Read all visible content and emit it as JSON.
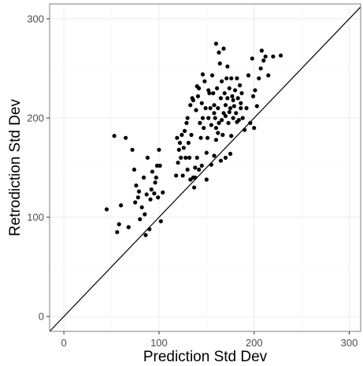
{
  "chart_data": {
    "type": "scatter",
    "xlabel": "Prediction Std Dev",
    "ylabel": "Retrodiction Std Dev",
    "xlim": [
      -15,
      312
    ],
    "ylim": [
      -15,
      315
    ],
    "x_ticks": [
      0,
      100,
      200,
      300
    ],
    "y_ticks": [
      0,
      100,
      200,
      300
    ],
    "grid": true,
    "reference_line": "y = x",
    "colors": {
      "point": "#000000",
      "grid": "#ebebeb",
      "panel_border": "#7f7f7f",
      "line": "#000000"
    },
    "points": [
      [
        45,
        108
      ],
      [
        53,
        182
      ],
      [
        56,
        85
      ],
      [
        58,
        93
      ],
      [
        60,
        112
      ],
      [
        65,
        180
      ],
      [
        68,
        90
      ],
      [
        72,
        168
      ],
      [
        74,
        148
      ],
      [
        75,
        115
      ],
      [
        76,
        132
      ],
      [
        78,
        120
      ],
      [
        79,
        126
      ],
      [
        80,
        98
      ],
      [
        82,
        110
      ],
      [
        84,
        140
      ],
      [
        85,
        103
      ],
      [
        86,
        82
      ],
      [
        87,
        123
      ],
      [
        88,
        160
      ],
      [
        90,
        88
      ],
      [
        91,
        118
      ],
      [
        92,
        128
      ],
      [
        93,
        146
      ],
      [
        95,
        124
      ],
      [
        96,
        135
      ],
      [
        97,
        140
      ],
      [
        98,
        152
      ],
      [
        99,
        120
      ],
      [
        100,
        168
      ],
      [
        101,
        152
      ],
      [
        102,
        96
      ],
      [
        104,
        125
      ],
      [
        118,
        142
      ],
      [
        119,
        180
      ],
      [
        120,
        155
      ],
      [
        121,
        168
      ],
      [
        122,
        175
      ],
      [
        123,
        160
      ],
      [
        124,
        183
      ],
      [
        125,
        142
      ],
      [
        126,
        170
      ],
      [
        127,
        187
      ],
      [
        128,
        160
      ],
      [
        129,
        195
      ],
      [
        130,
        148
      ],
      [
        131,
        175
      ],
      [
        132,
        160
      ],
      [
        133,
        213
      ],
      [
        134,
        183
      ],
      [
        135,
        220
      ],
      [
        136,
        140
      ],
      [
        137,
        130
      ],
      [
        138,
        150
      ],
      [
        139,
        208
      ],
      [
        140,
        160
      ],
      [
        141,
        222
      ],
      [
        142,
        230
      ],
      [
        143,
        195
      ],
      [
        144,
        180
      ],
      [
        145,
        215
      ],
      [
        146,
        200
      ],
      [
        147,
        190
      ],
      [
        148,
        237
      ],
      [
        149,
        210
      ],
      [
        150,
        165
      ],
      [
        151,
        180
      ],
      [
        152,
        200
      ],
      [
        153,
        225
      ],
      [
        154,
        210
      ],
      [
        155,
        193
      ],
      [
        156,
        243
      ],
      [
        157,
        225
      ],
      [
        158,
        213
      ],
      [
        159,
        200
      ],
      [
        160,
        178
      ],
      [
        161,
        230
      ],
      [
        162,
        210
      ],
      [
        163,
        195
      ],
      [
        164,
        255
      ],
      [
        165,
        220
      ],
      [
        166,
        237
      ],
      [
        167,
        183
      ],
      [
        168,
        205
      ],
      [
        169,
        225
      ],
      [
        170,
        213
      ],
      [
        171,
        240
      ],
      [
        172,
        220
      ],
      [
        173,
        195
      ],
      [
        174,
        230
      ],
      [
        175,
        210
      ],
      [
        176,
        240
      ],
      [
        177,
        222
      ],
      [
        178,
        200
      ],
      [
        179,
        212
      ],
      [
        180,
        228
      ],
      [
        181,
        205
      ],
      [
        182,
        240
      ],
      [
        183,
        220
      ],
      [
        184,
        198
      ],
      [
        185,
        233
      ],
      [
        186,
        215
      ],
      [
        187,
        225
      ],
      [
        188,
        200
      ],
      [
        190,
        188
      ],
      [
        192,
        210
      ],
      [
        194,
        243
      ],
      [
        196,
        195
      ],
      [
        198,
        260
      ],
      [
        199,
        222
      ],
      [
        200,
        190
      ],
      [
        201,
        228
      ],
      [
        203,
        212
      ],
      [
        205,
        240
      ],
      [
        207,
        250
      ],
      [
        208,
        268
      ],
      [
        210,
        258
      ],
      [
        212,
        262
      ],
      [
        215,
        243
      ],
      [
        220,
        262
      ],
      [
        228,
        263
      ],
      [
        160,
        275
      ],
      [
        163,
        266
      ],
      [
        168,
        270
      ],
      [
        172,
        252
      ],
      [
        155,
        153
      ],
      [
        150,
        138
      ],
      [
        145,
        152
      ],
      [
        165,
        157
      ],
      [
        170,
        160
      ],
      [
        175,
        164
      ],
      [
        158,
        162
      ],
      [
        142,
        148
      ],
      [
        138,
        140
      ],
      [
        133,
        138
      ],
      [
        160,
        190
      ],
      [
        162,
        185
      ],
      [
        158,
        205
      ],
      [
        166,
        198
      ],
      [
        170,
        202
      ],
      [
        174,
        206
      ],
      [
        178,
        218
      ],
      [
        182,
        196
      ],
      [
        186,
        210
      ],
      [
        152,
        228
      ],
      [
        146,
        244
      ],
      [
        140,
        232
      ],
      [
        136,
        218
      ],
      [
        130,
        200
      ],
      [
        176,
        182
      ]
    ]
  }
}
